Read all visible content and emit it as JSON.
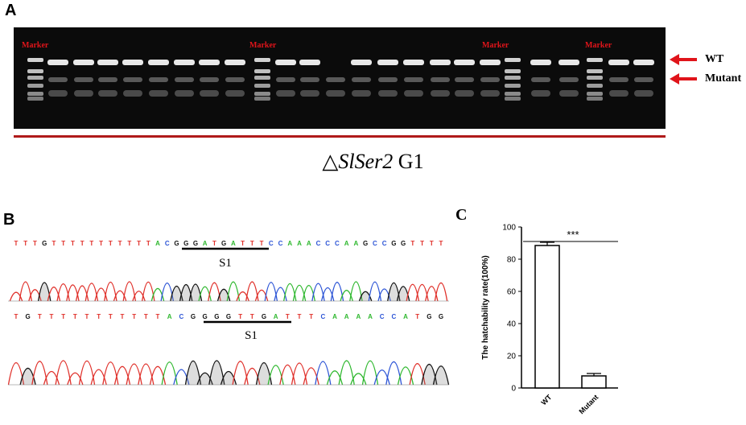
{
  "panels": {
    "a": "A",
    "b": "B",
    "c": "C"
  },
  "gel": {
    "marker_labels": [
      "Marker",
      "Marker",
      "Marker",
      "Marker"
    ],
    "wt_label": "WT",
    "mutant_label": "Mutant",
    "title_symbol": "△",
    "title_gene": "SlSer2",
    "title_gen": "G1",
    "band_color": "#e8e8e8",
    "marker_text_color": "#e0141a",
    "arrow_color": "#e0141a"
  },
  "sequences": [
    {
      "bases": "TTTGTTTTTTTTTTTACGGGATGATTTCCAAACCCAAGCCGGTTTT",
      "site_label": "S1"
    },
    {
      "bases": "TGTTTTTTTTTTTACGGGGTTGATTTCAAAACCATGG",
      "site_label": "S1"
    }
  ],
  "base_colors": {
    "A": "#2fb82f",
    "T": "#e0302a",
    "G": "#111111",
    "C": "#2d55d6"
  },
  "chart_data": {
    "type": "bar",
    "categories": [
      "WT",
      "Mutant"
    ],
    "values": [
      88.5,
      7.5
    ],
    "errors": [
      2.0,
      1.5
    ],
    "ylabel": "The hatchability rate(100%)",
    "ylim": [
      0,
      100
    ],
    "yticks": [
      0,
      20,
      40,
      60,
      80,
      100
    ],
    "significance": "***",
    "grid": false,
    "bar_fill": "#ffffff",
    "bar_stroke": "#000000"
  }
}
